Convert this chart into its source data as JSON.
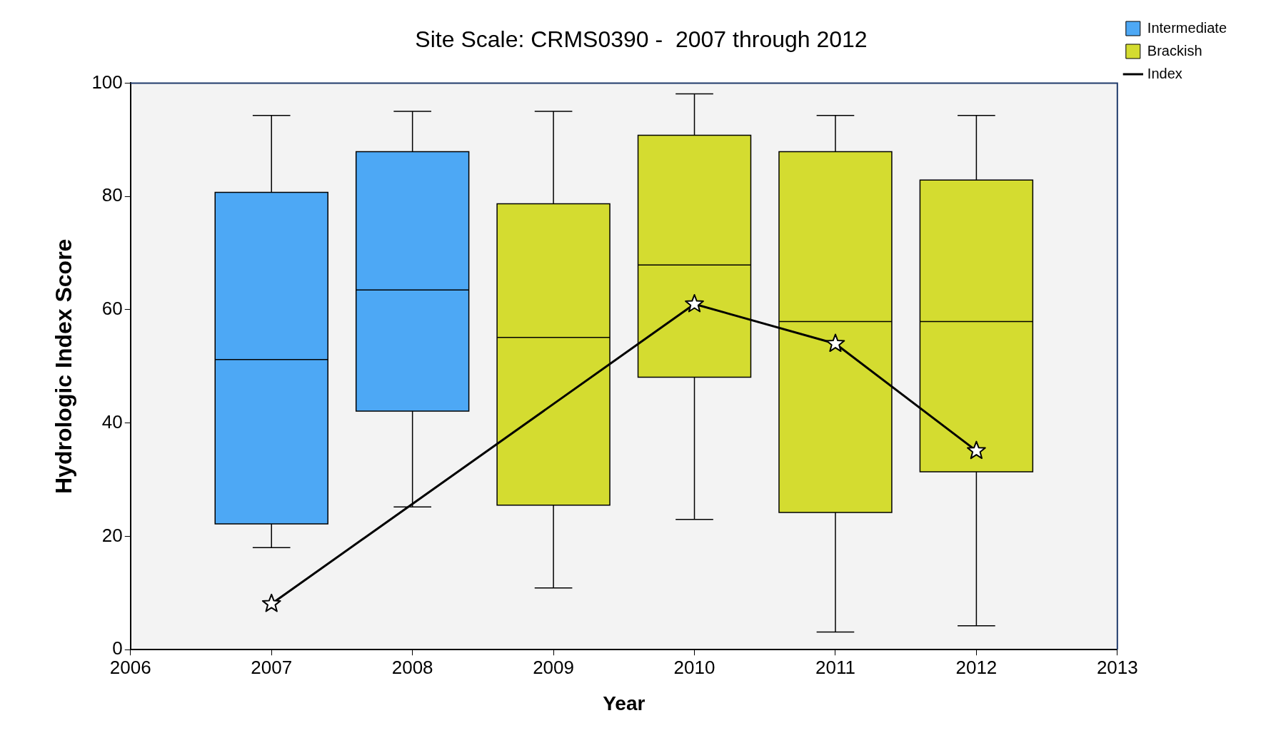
{
  "chart_data": {
    "type": "box",
    "title": "Site Scale: CRMS0390 -  2007 through 2012",
    "xlabel": "Year",
    "ylabel": "Hydrologic Index Score",
    "xlim": [
      2006,
      2013
    ],
    "xticks": [
      2006,
      2007,
      2008,
      2009,
      2010,
      2011,
      2012,
      2013
    ],
    "ylim": [
      0,
      100
    ],
    "yticks": [
      0,
      20,
      40,
      60,
      80,
      100
    ],
    "grid": false,
    "legend": "top right",
    "marker": "star",
    "series": [
      {
        "name": "Intermediate",
        "type": "box",
        "color": "#4da8f5",
        "x": [
          2007,
          2008
        ],
        "boxes": [
          {
            "low": 18,
            "q1": 22.2,
            "median": 51.2,
            "q3": 80.7,
            "high": 94.3
          },
          {
            "low": 25.2,
            "q1": 42.1,
            "median": 63.5,
            "q3": 87.9,
            "high": 95
          }
        ]
      },
      {
        "name": "Brackish",
        "type": "box",
        "color": "#d4dc30",
        "x": [
          2009,
          2010,
          2011,
          2012
        ],
        "boxes": [
          {
            "low": 10.9,
            "q1": 25.5,
            "median": 55.1,
            "q3": 78.7,
            "high": 95
          },
          {
            "low": 23,
            "q1": 48.1,
            "median": 67.9,
            "q3": 90.8,
            "high": 98.1
          },
          {
            "low": 3.1,
            "q1": 24.2,
            "median": 57.9,
            "q3": 87.9,
            "high": 94.3
          },
          {
            "low": 4.2,
            "q1": 31.4,
            "median": 57.9,
            "q3": 82.9,
            "high": 94.3
          }
        ]
      },
      {
        "name": "Index",
        "type": "line",
        "color": "#000000",
        "x": [
          2007,
          2010,
          2011,
          2012
        ],
        "values": [
          8.1,
          61,
          54,
          35.1
        ]
      }
    ]
  }
}
